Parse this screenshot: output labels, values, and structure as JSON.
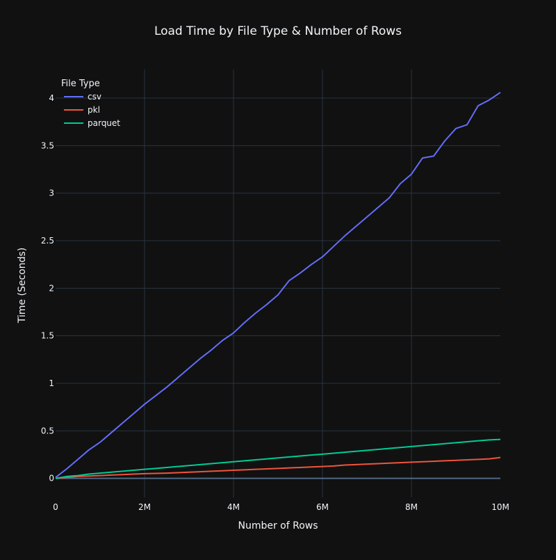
{
  "chart_data": {
    "type": "line",
    "title": "Load Time by File Type & Number of Rows",
    "xlabel": "Number of Rows",
    "ylabel": "Time (Seconds)",
    "xlim": [
      0,
      10000000
    ],
    "ylim": [
      -0.2,
      4.3
    ],
    "x_ticks": [
      {
        "value": 0,
        "label": "0"
      },
      {
        "value": 2000000,
        "label": "2M"
      },
      {
        "value": 4000000,
        "label": "4M"
      },
      {
        "value": 6000000,
        "label": "6M"
      },
      {
        "value": 8000000,
        "label": "8M"
      },
      {
        "value": 10000000,
        "label": "10M"
      }
    ],
    "y_ticks": [
      {
        "value": 0,
        "label": "0"
      },
      {
        "value": 0.5,
        "label": "0.5"
      },
      {
        "value": 1,
        "label": "1"
      },
      {
        "value": 1.5,
        "label": "1.5"
      },
      {
        "value": 2,
        "label": "2"
      },
      {
        "value": 2.5,
        "label": "2.5"
      },
      {
        "value": 3,
        "label": "3"
      },
      {
        "value": 3.5,
        "label": "3.5"
      },
      {
        "value": 4,
        "label": "4"
      }
    ],
    "grid": true,
    "legend": {
      "title": "File Type",
      "position": "top-left"
    },
    "background": "#111111",
    "grid_color": "#283442",
    "x": [
      0,
      250000,
      500000,
      750000,
      1000000,
      1250000,
      1500000,
      1750000,
      2000000,
      2250000,
      2500000,
      2750000,
      3000000,
      3250000,
      3500000,
      3750000,
      4000000,
      4250000,
      4500000,
      4750000,
      5000000,
      5250000,
      5500000,
      5750000,
      6000000,
      6250000,
      6500000,
      6750000,
      7000000,
      7250000,
      7500000,
      7750000,
      8000000,
      8250000,
      8500000,
      8750000,
      9000000,
      9250000,
      9500000,
      9750000,
      10000000
    ],
    "series": [
      {
        "name": "csv",
        "color": "#636efa",
        "values": [
          0.01,
          0.1,
          0.2,
          0.3,
          0.38,
          0.48,
          0.58,
          0.68,
          0.78,
          0.87,
          0.96,
          1.06,
          1.16,
          1.26,
          1.35,
          1.45,
          1.53,
          1.64,
          1.74,
          1.83,
          1.93,
          2.08,
          2.16,
          2.25,
          2.33,
          2.44,
          2.55,
          2.65,
          2.75,
          2.85,
          2.95,
          3.1,
          3.2,
          3.37,
          3.39,
          3.55,
          3.68,
          3.72,
          3.92,
          3.98,
          4.06
        ]
      },
      {
        "name": "pkl",
        "color": "#ef553b",
        "values": [
          0.0,
          0.01,
          0.02,
          0.025,
          0.03,
          0.035,
          0.04,
          0.045,
          0.05,
          0.052,
          0.055,
          0.06,
          0.065,
          0.07,
          0.075,
          0.08,
          0.085,
          0.09,
          0.095,
          0.1,
          0.105,
          0.11,
          0.115,
          0.12,
          0.125,
          0.13,
          0.14,
          0.145,
          0.15,
          0.155,
          0.16,
          0.165,
          0.17,
          0.175,
          0.18,
          0.185,
          0.19,
          0.195,
          0.2,
          0.205,
          0.22
        ]
      },
      {
        "name": "parquet",
        "color": "#00cc96",
        "values": [
          0.0,
          0.02,
          0.03,
          0.045,
          0.055,
          0.065,
          0.075,
          0.085,
          0.095,
          0.105,
          0.115,
          0.125,
          0.135,
          0.145,
          0.155,
          0.165,
          0.175,
          0.185,
          0.195,
          0.205,
          0.215,
          0.225,
          0.235,
          0.245,
          0.255,
          0.265,
          0.275,
          0.285,
          0.295,
          0.305,
          0.315,
          0.325,
          0.335,
          0.345,
          0.355,
          0.365,
          0.375,
          0.385,
          0.395,
          0.405,
          0.41
        ]
      }
    ]
  }
}
